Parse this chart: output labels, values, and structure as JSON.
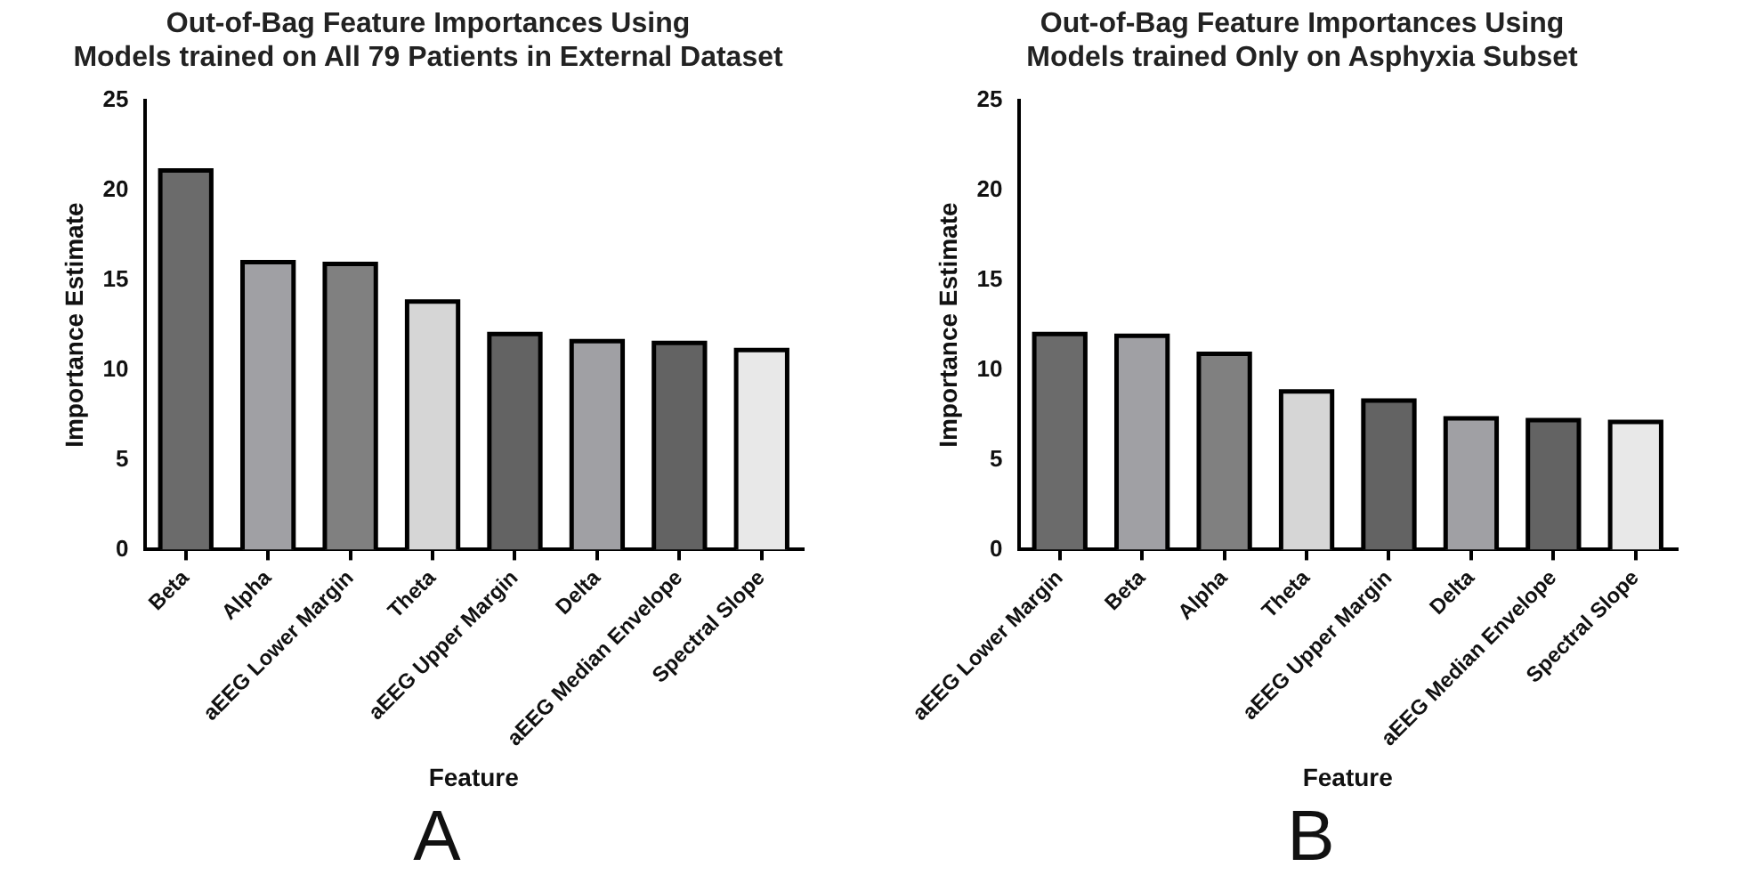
{
  "chart_data": [
    {
      "type": "bar",
      "title": "Out-of-Bag Feature Importances Using\nModels trained on All 79 Patients in External Dataset",
      "xlabel": "Feature",
      "ylabel": "Importance Estimate",
      "categories": [
        "Beta",
        "Alpha",
        "aEEG Lower Margin",
        "Theta",
        "aEEG Upper Margin",
        "Delta",
        "aEEG Median Envelope",
        "Spectral Slope"
      ],
      "values": [
        21.1,
        16.0,
        15.9,
        13.8,
        12.0,
        11.6,
        11.5,
        11.1
      ],
      "colors": [
        "#6b6b6b",
        "#a0a0a4",
        "#808080",
        "#d6d6d6",
        "#636363",
        "#a0a0a4",
        "#636363",
        "#e8e8e8"
      ],
      "ylim": [
        0,
        25
      ],
      "yticks": [
        0,
        5,
        10,
        15,
        20,
        25
      ],
      "grid": false,
      "legend": false,
      "annotations": [
        "A"
      ]
    },
    {
      "type": "bar",
      "title": "Out-of-Bag Feature Importances Using\nModels trained Only on Asphyxia Subset",
      "xlabel": "Feature",
      "ylabel": "Importance Estimate",
      "categories": [
        "aEEG Lower Margin",
        "Beta",
        "Alpha",
        "Theta",
        "aEEG Upper Margin",
        "Delta",
        "aEEG Median Envelope",
        "Spectral Slope"
      ],
      "values": [
        12.0,
        11.9,
        10.9,
        8.8,
        8.3,
        7.3,
        7.2,
        7.1
      ],
      "colors": [
        "#6b6b6b",
        "#a0a0a4",
        "#808080",
        "#d6d6d6",
        "#636363",
        "#a0a0a4",
        "#636363",
        "#e8e8e8"
      ],
      "ylim": [
        0,
        25
      ],
      "yticks": [
        0,
        5,
        10,
        15,
        20,
        25
      ],
      "grid": false,
      "legend": false,
      "annotations": [
        "B"
      ]
    }
  ]
}
